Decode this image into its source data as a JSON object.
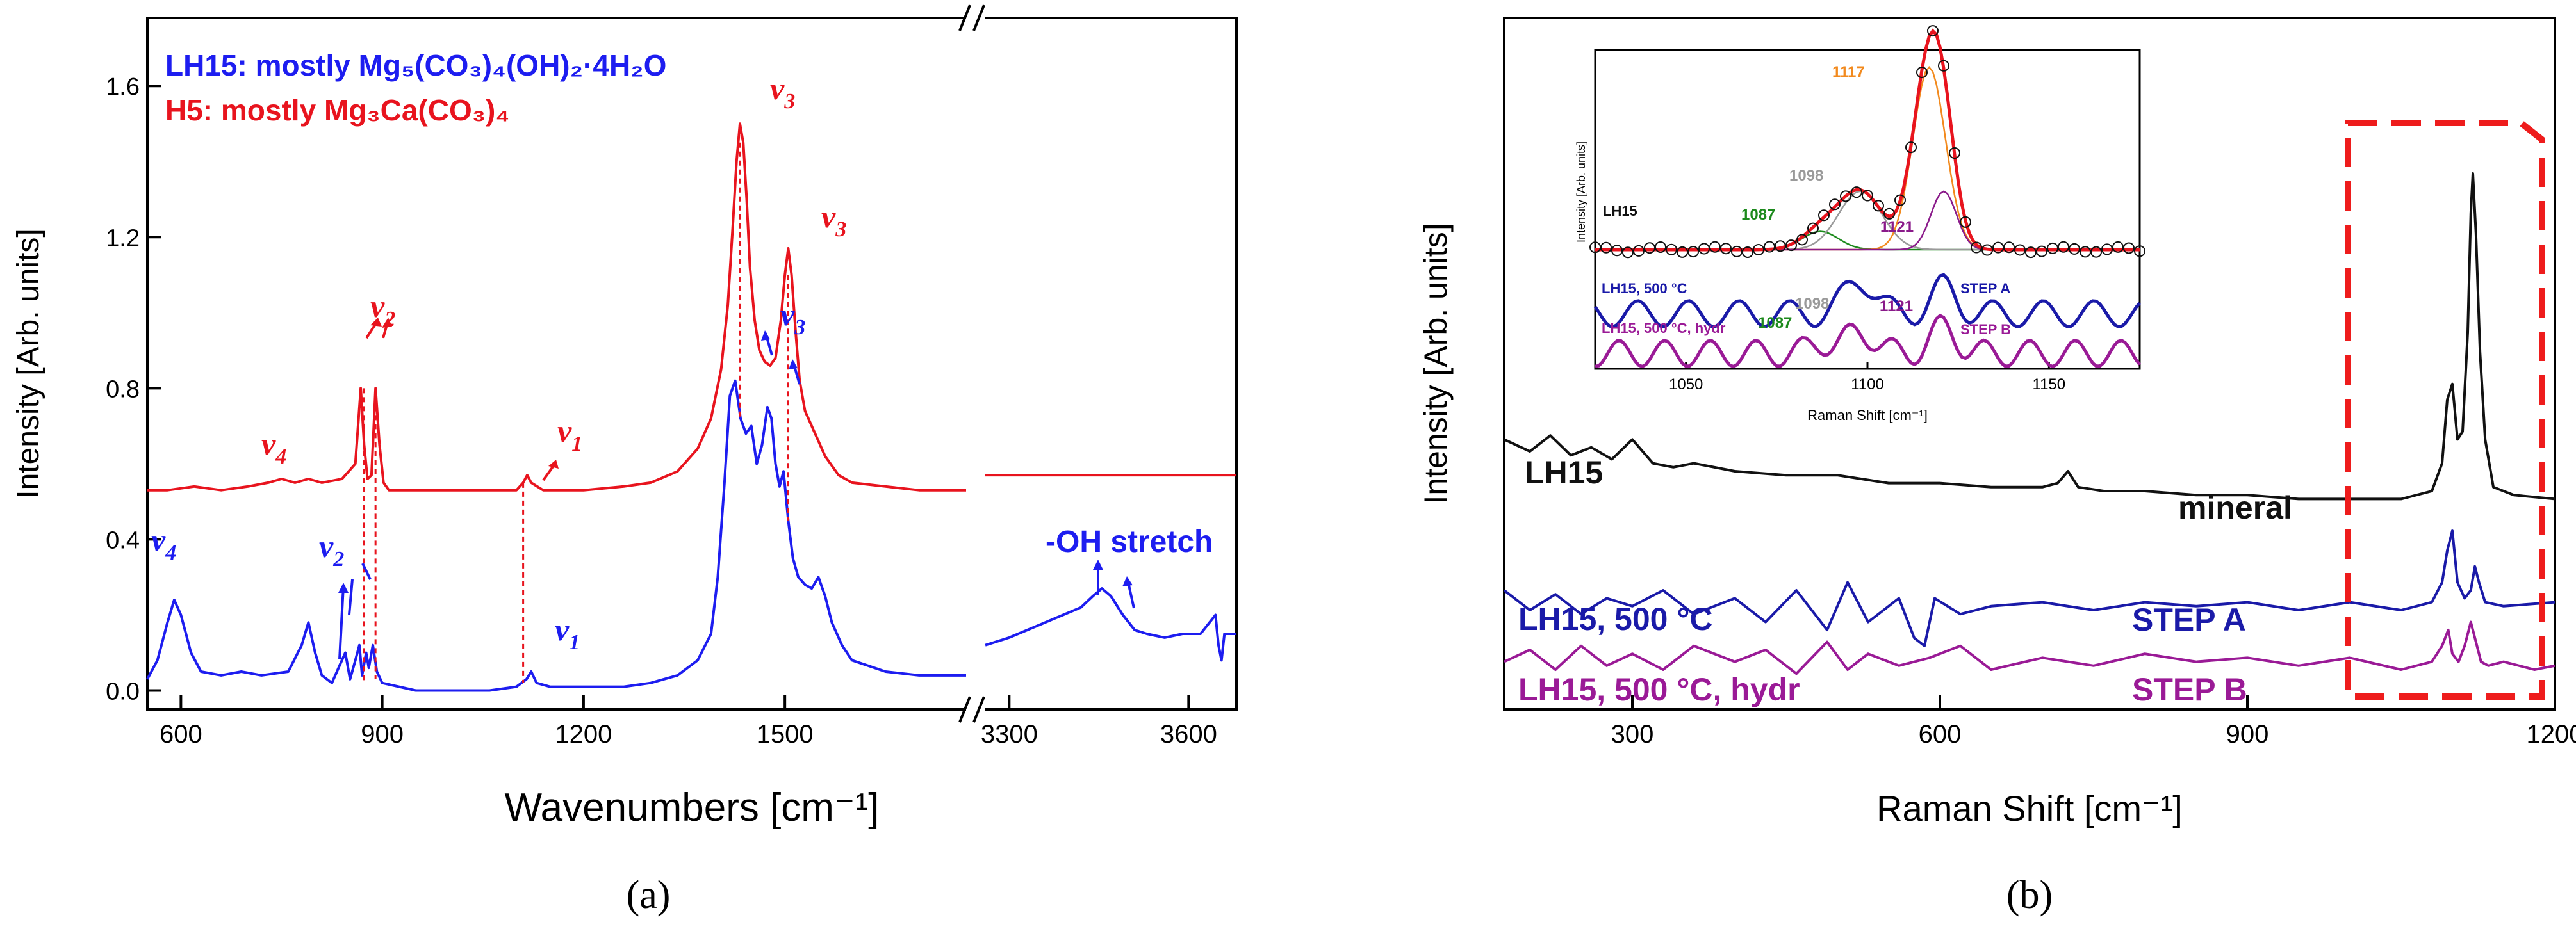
{
  "colors": {
    "red": "#e8141e",
    "blue": "#1d1df0",
    "black": "#111111",
    "navy": "#1a1aa8",
    "purple": "#9a1a96",
    "orange": "#f28a1e",
    "green": "#1d8a1d",
    "gray": "#9a9a9a",
    "violet": "#8a1a8a",
    "dash": "#ee1c1c"
  },
  "chart_data": [
    {
      "panel": "(a)",
      "type": "line",
      "xlabel": "Wavenumbers [cm⁻¹]",
      "ylabel": "Intensity [Arb. units]",
      "ylim": [
        -0.05,
        1.78
      ],
      "yticks": [
        "0.0",
        "0.4",
        "0.8",
        "1.2",
        "1.6"
      ],
      "ytick_values": [
        0.0,
        0.4,
        0.8,
        1.2,
        1.6
      ],
      "segments": [
        {
          "xlim": [
            550,
            1770
          ],
          "xticks": [
            "600",
            "900",
            "1200",
            "1500"
          ],
          "xtick_values": [
            600,
            900,
            1200,
            1500
          ]
        },
        {
          "xlim": [
            3260,
            3680
          ],
          "xticks": [
            "3300",
            "3600"
          ],
          "xtick_values": [
            3300,
            3600
          ]
        }
      ],
      "legend": [
        {
          "name": "LH15: mostly Mg₅(CO₃)₄(OH)₂·4H₂O",
          "color": "blue"
        },
        {
          "name": "H5: mostly Mg₃Ca(CO₃)₄",
          "color": "red"
        }
      ],
      "series": [
        {
          "name": "H5",
          "color": "red",
          "x": [
            550,
            580,
            620,
            660,
            700,
            730,
            750,
            770,
            790,
            810,
            840,
            860,
            868,
            873,
            878,
            884,
            890,
            896,
            902,
            910,
            940,
            1000,
            1060,
            1100,
            1110,
            1116,
            1122,
            1140,
            1200,
            1260,
            1300,
            1340,
            1370,
            1390,
            1405,
            1415,
            1422,
            1428,
            1433,
            1438,
            1443,
            1448,
            1455,
            1462,
            1470,
            1478,
            1486,
            1494,
            1500,
            1505,
            1510,
            1516,
            1522,
            1530,
            1545,
            1560,
            1580,
            1600,
            1650,
            1700,
            1770
          ],
          "y": [
            0.53,
            0.53,
            0.54,
            0.53,
            0.54,
            0.55,
            0.56,
            0.55,
            0.56,
            0.55,
            0.56,
            0.6,
            0.8,
            0.65,
            0.56,
            0.57,
            0.8,
            0.65,
            0.55,
            0.53,
            0.53,
            0.53,
            0.53,
            0.53,
            0.55,
            0.57,
            0.55,
            0.53,
            0.53,
            0.54,
            0.55,
            0.58,
            0.64,
            0.72,
            0.85,
            1.02,
            1.22,
            1.4,
            1.5,
            1.45,
            1.3,
            1.12,
            0.98,
            0.9,
            0.87,
            0.86,
            0.88,
            0.98,
            1.1,
            1.17,
            1.1,
            0.95,
            0.82,
            0.74,
            0.68,
            0.62,
            0.57,
            0.55,
            0.54,
            0.53,
            0.53
          ]
        },
        {
          "name": "LH15",
          "color": "blue",
          "x": [
            550,
            565,
            580,
            590,
            600,
            615,
            630,
            660,
            690,
            720,
            760,
            780,
            790,
            800,
            810,
            825,
            835,
            845,
            852,
            860,
            866,
            870,
            876,
            880,
            886,
            892,
            900,
            950,
            1000,
            1060,
            1100,
            1115,
            1122,
            1130,
            1150,
            1200,
            1260,
            1300,
            1340,
            1370,
            1390,
            1400,
            1410,
            1418,
            1426,
            1434,
            1442,
            1450,
            1458,
            1466,
            1474,
            1480,
            1486,
            1492,
            1498,
            1505,
            1512,
            1520,
            1530,
            1540,
            1550,
            1560,
            1570,
            1585,
            1600,
            1650,
            1700,
            1770
          ],
          "y": [
            0.03,
            0.08,
            0.18,
            0.24,
            0.2,
            0.1,
            0.05,
            0.04,
            0.05,
            0.04,
            0.05,
            0.12,
            0.18,
            0.1,
            0.04,
            0.02,
            0.06,
            0.1,
            0.03,
            0.08,
            0.12,
            0.04,
            0.1,
            0.06,
            0.12,
            0.05,
            0.02,
            0.0,
            0.0,
            0.0,
            0.01,
            0.03,
            0.05,
            0.02,
            0.01,
            0.01,
            0.01,
            0.02,
            0.04,
            0.08,
            0.15,
            0.3,
            0.55,
            0.78,
            0.82,
            0.72,
            0.68,
            0.7,
            0.6,
            0.65,
            0.75,
            0.72,
            0.6,
            0.54,
            0.58,
            0.45,
            0.35,
            0.3,
            0.28,
            0.27,
            0.3,
            0.25,
            0.18,
            0.12,
            0.08,
            0.05,
            0.04,
            0.04
          ]
        },
        {
          "name": "H5 (high)",
          "color": "red",
          "x": [
            3260,
            3300,
            3400,
            3500,
            3600,
            3680
          ],
          "y": [
            0.57,
            0.57,
            0.57,
            0.57,
            0.57,
            0.57
          ]
        },
        {
          "name": "LH15 (high)",
          "color": "blue",
          "x": [
            3260,
            3280,
            3300,
            3330,
            3360,
            3390,
            3420,
            3440,
            3455,
            3470,
            3490,
            3510,
            3530,
            3560,
            3590,
            3620,
            3645,
            3650,
            3655,
            3660,
            3680
          ],
          "y": [
            0.12,
            0.13,
            0.14,
            0.16,
            0.18,
            0.2,
            0.22,
            0.25,
            0.27,
            0.25,
            0.2,
            0.16,
            0.15,
            0.14,
            0.15,
            0.15,
            0.2,
            0.12,
            0.08,
            0.15,
            0.15
          ]
        }
      ],
      "annotations": [
        "v",
        "4",
        "v",
        "2",
        "v",
        "1",
        "v",
        "3",
        "v",
        "3",
        "v",
        "4",
        "v",
        "2",
        "v",
        "3",
        "v",
        "1",
        "-OH stretch"
      ]
    },
    {
      "panel": "(b)",
      "type": "line",
      "xlabel": "Raman Shift [cm⁻¹]",
      "ylabel": "Intensity [Arb. units]",
      "xlim": [
        175,
        1200
      ],
      "xticks": [
        "300",
        "600",
        "900",
        "1200"
      ],
      "xtick_values": [
        300,
        600,
        900,
        1200
      ],
      "series_labels": [
        "LH15",
        "LH15, 500 °C",
        "LH15, 500 °C, hydr"
      ],
      "right_labels": [
        "mineral",
        "STEP A",
        "STEP B"
      ],
      "series": [
        {
          "name": "LH15",
          "color": "black",
          "x": [
            175,
            200,
            220,
            240,
            260,
            280,
            300,
            320,
            340,
            360,
            400,
            450,
            500,
            550,
            600,
            650,
            700,
            715,
            725,
            735,
            760,
            800,
            850,
            900,
            950,
            1000,
            1050,
            1080,
            1090,
            1095,
            1100,
            1105,
            1110,
            1115,
            1118,
            1120,
            1123,
            1127,
            1132,
            1140,
            1160,
            1200
          ],
          "y": [
            0.68,
            0.65,
            0.69,
            0.64,
            0.66,
            0.63,
            0.68,
            0.62,
            0.61,
            0.62,
            0.6,
            0.59,
            0.59,
            0.57,
            0.57,
            0.56,
            0.56,
            0.57,
            0.6,
            0.56,
            0.55,
            0.55,
            0.54,
            0.54,
            0.53,
            0.53,
            0.53,
            0.55,
            0.62,
            0.78,
            0.82,
            0.68,
            0.7,
            0.95,
            1.25,
            1.35,
            1.2,
            0.9,
            0.68,
            0.56,
            0.54,
            0.53
          ]
        },
        {
          "name": "LH15, 500 °C",
          "color": "navy",
          "x": [
            175,
            200,
            225,
            250,
            275,
            300,
            330,
            360,
            400,
            430,
            460,
            490,
            510,
            530,
            560,
            575,
            585,
            595,
            620,
            650,
            700,
            750,
            800,
            850,
            900,
            950,
            1000,
            1050,
            1080,
            1090,
            1095,
            1100,
            1105,
            1112,
            1118,
            1122,
            1126,
            1132,
            1150,
            1200
          ],
          "y": [
            0.3,
            0.25,
            0.29,
            0.24,
            0.28,
            0.26,
            0.3,
            0.24,
            0.28,
            0.22,
            0.3,
            0.2,
            0.32,
            0.22,
            0.28,
            0.18,
            0.16,
            0.28,
            0.24,
            0.26,
            0.27,
            0.25,
            0.27,
            0.26,
            0.27,
            0.25,
            0.27,
            0.25,
            0.27,
            0.32,
            0.4,
            0.45,
            0.32,
            0.28,
            0.3,
            0.36,
            0.32,
            0.27,
            0.26,
            0.27
          ]
        },
        {
          "name": "LH15, 500 °C, hydr",
          "color": "purple",
          "x": [
            175,
            200,
            225,
            250,
            275,
            300,
            330,
            360,
            400,
            430,
            460,
            490,
            510,
            530,
            560,
            590,
            620,
            650,
            700,
            750,
            800,
            850,
            900,
            950,
            1000,
            1050,
            1080,
            1090,
            1096,
            1100,
            1106,
            1112,
            1118,
            1122,
            1128,
            1135,
            1150,
            1180,
            1200
          ],
          "y": [
            0.12,
            0.15,
            0.1,
            0.16,
            0.11,
            0.14,
            0.1,
            0.16,
            0.12,
            0.15,
            0.09,
            0.17,
            0.1,
            0.14,
            0.11,
            0.13,
            0.16,
            0.1,
            0.13,
            0.11,
            0.14,
            0.12,
            0.13,
            0.11,
            0.13,
            0.1,
            0.12,
            0.16,
            0.2,
            0.14,
            0.12,
            0.16,
            0.22,
            0.18,
            0.12,
            0.11,
            0.12,
            0.1,
            0.11
          ]
        }
      ],
      "inset": {
        "type": "line",
        "xlabel": "Raman Shift [cm⁻¹]",
        "ylabel": "Intensity [Arb. units]",
        "xlim": [
          1025,
          1175
        ],
        "xticks": [
          "1050",
          "1100",
          "1150"
        ],
        "xtick_values": [
          1050,
          1100,
          1150
        ],
        "series_labels": [
          "LH15",
          "LH15, 500 °C",
          "LH15, 500 °C, hydr"
        ],
        "right_labels": [
          "STEP A",
          "STEP B"
        ],
        "peak_labels": [
          {
            "text": "1117",
            "color": "orange"
          },
          {
            "text": "1098",
            "color": "gray"
          },
          {
            "text": "1087",
            "color": "green"
          },
          {
            "text": "1121",
            "color": "violet"
          },
          {
            "text": "1098",
            "color": "gray"
          },
          {
            "text": "1087",
            "color": "green"
          },
          {
            "text": "1121",
            "color": "violet"
          }
        ]
      }
    }
  ],
  "captions": [
    "(a)",
    "(b)"
  ]
}
